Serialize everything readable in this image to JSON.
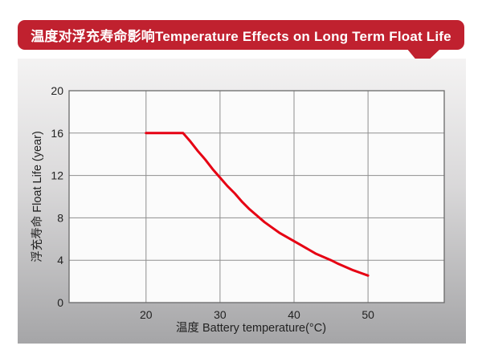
{
  "title_banner": {
    "text": "温度对浮充寿命影响Temperature Effects on Long Term Float Life",
    "bg_color": "#c0212f",
    "text_color": "#ffffff"
  },
  "chart_data": {
    "type": "line",
    "title": "温度对浮充寿命影响Temperature Effects on Long Term Float Life",
    "xlabel": "温度  Battery temperature(°C)",
    "ylabel": "浮充寿命 Float Life (year)",
    "xlim": [
      9.6,
      60.3
    ],
    "ylim": [
      0,
      20
    ],
    "x_ticks": [
      20,
      30,
      40,
      50
    ],
    "y_ticks": [
      0,
      4,
      8,
      12,
      16,
      20
    ],
    "grid": true,
    "legend_position": "none",
    "series": [
      {
        "name": "float-life-vs-temperature",
        "color": "#e60013",
        "points": [
          [
            20,
            16
          ],
          [
            25,
            16
          ],
          [
            26,
            15.2
          ],
          [
            27,
            14.3
          ],
          [
            28,
            13.5
          ],
          [
            29,
            12.6
          ],
          [
            30,
            11.8
          ],
          [
            31,
            11.0
          ],
          [
            32,
            10.3
          ],
          [
            33,
            9.5
          ],
          [
            34,
            8.8
          ],
          [
            35,
            8.2
          ],
          [
            36,
            7.6
          ],
          [
            37,
            7.1
          ],
          [
            38,
            6.6
          ],
          [
            39,
            6.2
          ],
          [
            40,
            5.8
          ],
          [
            41,
            5.4
          ],
          [
            42,
            5.0
          ],
          [
            43,
            4.6
          ],
          [
            44,
            4.3
          ],
          [
            45,
            4.0
          ],
          [
            46,
            3.65
          ],
          [
            47,
            3.35
          ],
          [
            48,
            3.05
          ],
          [
            49,
            2.8
          ],
          [
            50,
            2.55
          ]
        ]
      }
    ]
  },
  "colors": {
    "banner_red": "#c0212f",
    "curve_red": "#e60013",
    "plot_background": "#fbfbfb",
    "grid_line": "#8f8f8f",
    "plot_border": "#6a6a6a",
    "tick_text": "#222222",
    "panel_gradient_top": "#f4f3f3",
    "panel_gradient_bottom": "#a5a5a7"
  }
}
